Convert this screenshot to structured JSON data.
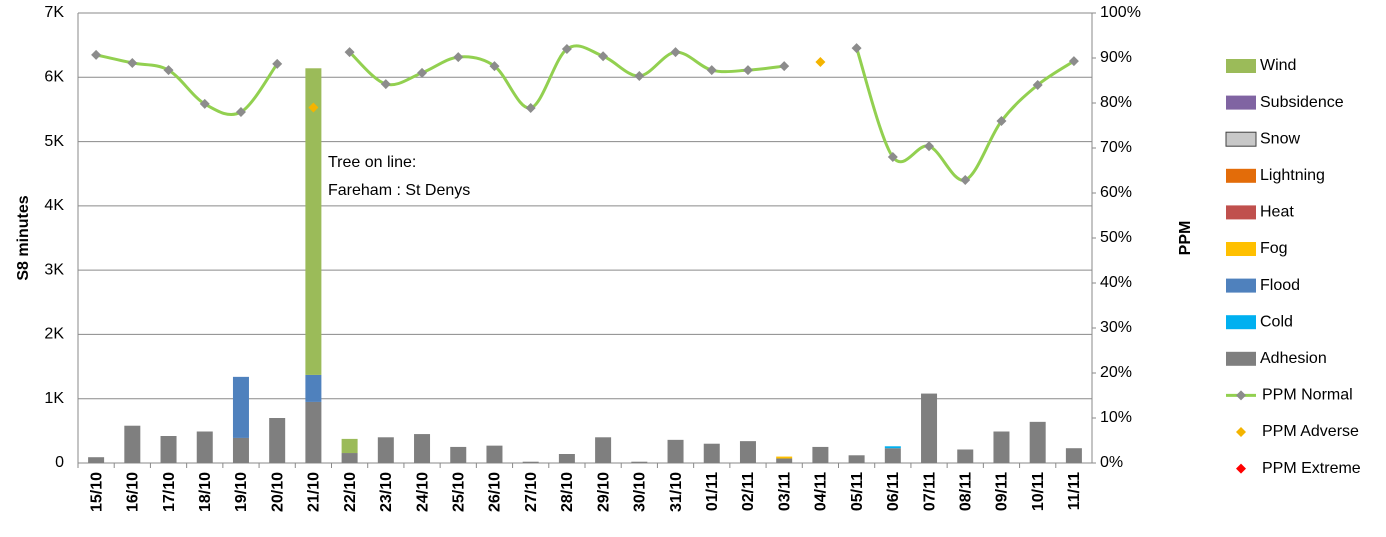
{
  "chart_data": {
    "type": "bar",
    "y_label": "S8 minutes",
    "y2_label": "PPM",
    "annotation": [
      "Tree on line:",
      "Fareham : St Denys"
    ],
    "categories": [
      "15/10",
      "16/10",
      "17/10",
      "18/10",
      "19/10",
      "20/10",
      "21/10",
      "22/10",
      "23/10",
      "24/10",
      "25/10",
      "26/10",
      "27/10",
      "28/10",
      "29/10",
      "30/10",
      "31/10",
      "01/11",
      "02/11",
      "03/11",
      "04/11",
      "05/11",
      "06/11",
      "07/11",
      "08/11",
      "09/11",
      "10/11",
      "11/11"
    ],
    "ylim": [
      0,
      7000
    ],
    "yticks": [
      0,
      {
        "value": 1000,
        "label": "1K"
      },
      {
        "value": 2000,
        "label": "2K"
      },
      {
        "value": 3000,
        "label": "3K"
      },
      {
        "value": 4000,
        "label": "4K"
      },
      {
        "value": 5000,
        "label": "5K"
      },
      {
        "value": 6000,
        "label": "6K"
      },
      {
        "value": 7000,
        "label": "7K"
      }
    ],
    "y2lim": [
      0,
      100
    ],
    "y2ticks": [
      {
        "value": 0,
        "label": "0%"
      },
      {
        "value": 10,
        "label": "10%"
      },
      {
        "value": 20,
        "label": "20%"
      },
      {
        "value": 30,
        "label": "30%"
      },
      {
        "value": 40,
        "label": "40%"
      },
      {
        "value": 50,
        "label": "50%"
      },
      {
        "value": 60,
        "label": "60%"
      },
      {
        "value": 70,
        "label": "70%"
      },
      {
        "value": 80,
        "label": "80%"
      },
      {
        "value": 90,
        "label": "90%"
      },
      {
        "value": 100,
        "label": "100%"
      }
    ],
    "grid": true,
    "legend": "right",
    "series": [
      {
        "name": "Wind",
        "type": "bar",
        "color": "#9bbb59",
        "values": [
          0,
          0,
          0,
          0,
          0,
          0,
          4770,
          220,
          0,
          0,
          0,
          0,
          0,
          0,
          0,
          0,
          0,
          0,
          0,
          0,
          0,
          0,
          0,
          0,
          0,
          0,
          0,
          0
        ]
      },
      {
        "name": "Subsidence",
        "type": "bar",
        "color": "#8064a2",
        "values": [
          0,
          0,
          0,
          0,
          0,
          0,
          0,
          0,
          0,
          0,
          0,
          0,
          0,
          0,
          0,
          0,
          0,
          0,
          0,
          0,
          0,
          0,
          0,
          0,
          0,
          0,
          0,
          0
        ]
      },
      {
        "name": "Snow",
        "type": "bar",
        "color": "#c8c8c8",
        "values": [
          0,
          0,
          0,
          0,
          0,
          0,
          0,
          0,
          0,
          0,
          0,
          0,
          0,
          0,
          0,
          0,
          0,
          0,
          0,
          0,
          0,
          0,
          0,
          0,
          0,
          0,
          0,
          0
        ]
      },
      {
        "name": "Lightning",
        "type": "bar",
        "color": "#e36c09",
        "values": [
          0,
          0,
          0,
          0,
          0,
          0,
          0,
          0,
          0,
          0,
          0,
          0,
          0,
          0,
          0,
          0,
          0,
          0,
          0,
          0,
          0,
          0,
          0,
          0,
          0,
          0,
          0,
          0
        ]
      },
      {
        "name": "Heat",
        "type": "bar",
        "color": "#c0504d",
        "values": [
          0,
          0,
          0,
          0,
          0,
          0,
          0,
          0,
          0,
          0,
          0,
          0,
          0,
          0,
          0,
          0,
          0,
          0,
          0,
          0,
          0,
          0,
          0,
          0,
          0,
          0,
          0,
          0
        ]
      },
      {
        "name": "Fog",
        "type": "bar",
        "color": "#ffc000",
        "values": [
          0,
          0,
          0,
          0,
          0,
          0,
          0,
          0,
          0,
          0,
          0,
          0,
          0,
          0,
          0,
          0,
          0,
          0,
          0,
          30,
          0,
          0,
          0,
          0,
          0,
          0,
          0,
          0
        ]
      },
      {
        "name": "Flood",
        "type": "bar",
        "color": "#4f81bd",
        "values": [
          0,
          0,
          0,
          0,
          950,
          0,
          420,
          0,
          0,
          0,
          0,
          0,
          0,
          0,
          0,
          0,
          0,
          0,
          0,
          0,
          0,
          0,
          0,
          0,
          0,
          0,
          0,
          0
        ]
      },
      {
        "name": "Cold",
        "type": "bar",
        "color": "#00b0f0",
        "values": [
          0,
          0,
          0,
          0,
          0,
          0,
          0,
          0,
          0,
          0,
          0,
          0,
          0,
          0,
          0,
          0,
          0,
          0,
          0,
          0,
          0,
          0,
          30,
          0,
          0,
          0,
          0,
          0
        ]
      },
      {
        "name": "Adhesion",
        "type": "bar",
        "color": "#7f7f7f",
        "values": [
          90,
          580,
          420,
          490,
          390,
          700,
          950,
          155,
          400,
          450,
          250,
          270,
          20,
          140,
          400,
          20,
          360,
          300,
          340,
          70,
          250,
          120,
          230,
          1080,
          210,
          490,
          640,
          230
        ]
      },
      {
        "name": "PPM Normal",
        "type": "line",
        "axis": "y2",
        "color": "#92d050",
        "marker_color": "#8c8c8c",
        "values": [
          90.7,
          88.9,
          87.3,
          79.8,
          78,
          88.7,
          null,
          91.3,
          84.2,
          86.7,
          90.2,
          88.2,
          78.9,
          92,
          90.4,
          86,
          91.3,
          87.3,
          87.3,
          88.2,
          null,
          92.2,
          68,
          70.4,
          62.9,
          76,
          84,
          89.3
        ]
      },
      {
        "name": "PPM Adverse",
        "type": "scatter",
        "axis": "y2",
        "color": "#f4b400",
        "values": [
          null,
          null,
          null,
          null,
          null,
          null,
          79,
          null,
          null,
          null,
          null,
          null,
          null,
          null,
          null,
          null,
          null,
          null,
          null,
          null,
          89.1,
          null,
          null,
          null,
          null,
          null,
          null,
          null
        ]
      },
      {
        "name": "PPM Extreme",
        "type": "scatter",
        "axis": "y2",
        "color": "#ff0000",
        "values": [
          null,
          null,
          null,
          null,
          null,
          null,
          null,
          null,
          null,
          null,
          null,
          null,
          null,
          null,
          null,
          null,
          null,
          null,
          null,
          null,
          null,
          null,
          null,
          null,
          null,
          null,
          null,
          null
        ]
      }
    ]
  }
}
